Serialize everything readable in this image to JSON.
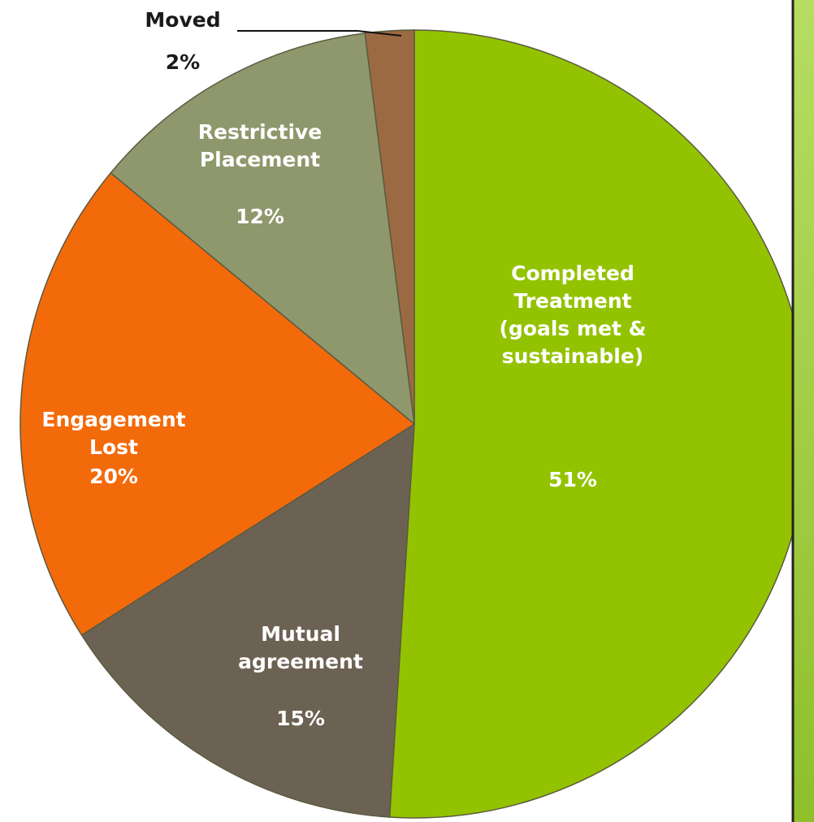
{
  "chart_data": {
    "type": "pie",
    "categories": [
      "Completed Treatment (goals met & sustainable)",
      "Mutual agreement",
      "Engagement Lost",
      "Restrictive Placement",
      "Moved"
    ],
    "values": [
      51,
      15,
      20,
      12,
      2
    ],
    "value_labels": [
      "51%",
      "15%",
      "20%",
      "12%",
      "2%"
    ],
    "colors": [
      "#93c300",
      "#6c6253",
      "#f36a0a",
      "#8e986c",
      "#9c6a42"
    ]
  }
}
